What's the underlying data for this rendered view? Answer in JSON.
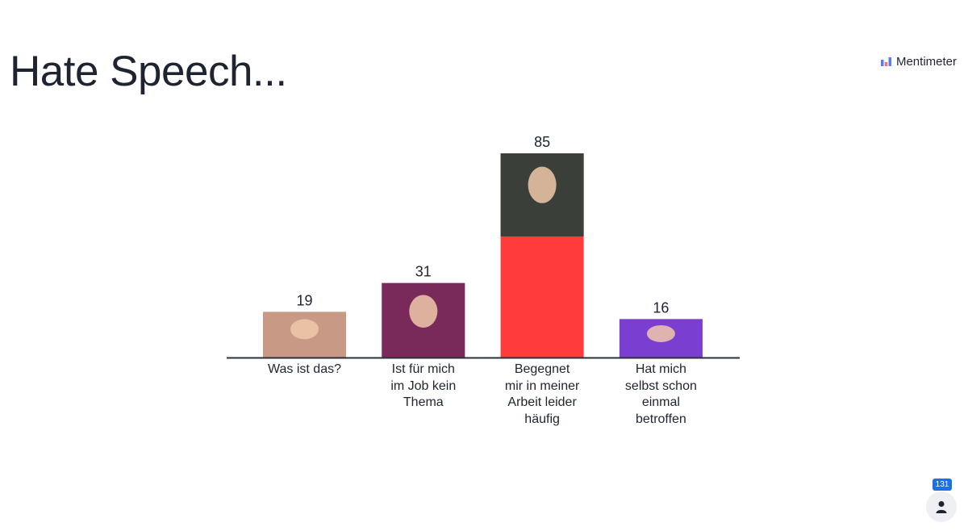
{
  "slide": {
    "title": "Hate Speech..."
  },
  "brand": {
    "name": "Mentimeter"
  },
  "participants": {
    "count": "131",
    "icon": "person-icon"
  },
  "colors": {
    "baseline": "#2b2f38"
  },
  "chart_data": {
    "type": "bar",
    "categories": [
      "Was ist das?",
      "Ist für mich\nim Job kein\nThema",
      "Begegnet\nmir in meiner\nArbeit leider\nhäufig",
      "Hat mich\nselbst schon\neinmal\nbetroffen"
    ],
    "values": [
      19,
      31,
      85,
      16
    ],
    "bar_colors": [
      "#2f6ff5",
      "#ff7fb0",
      "#ff3b3b",
      "#f9c12e"
    ],
    "title": "",
    "xlabel": "",
    "ylabel": "",
    "grid": false,
    "legend": "none"
  }
}
